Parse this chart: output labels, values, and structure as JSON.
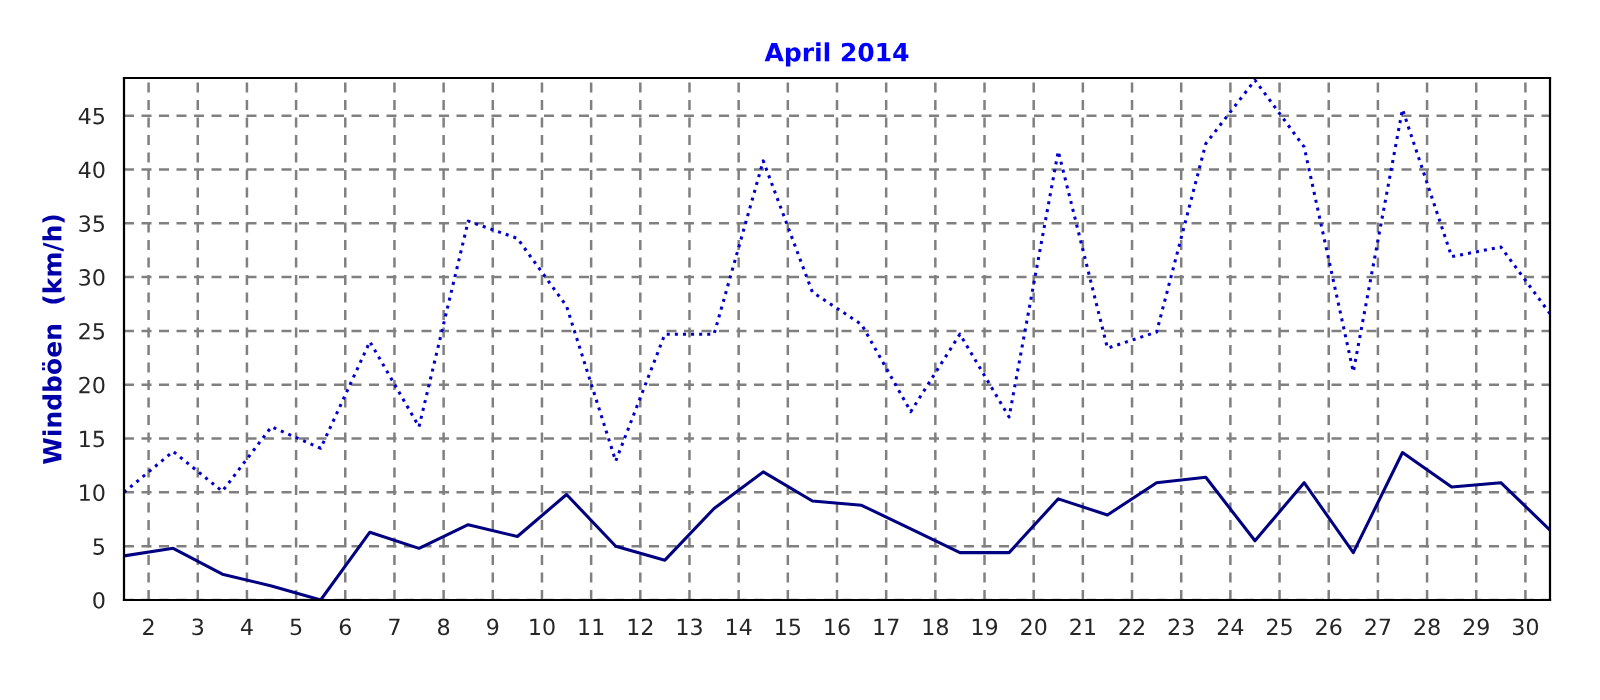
{
  "chart_data": {
    "type": "line",
    "title": "April 2014",
    "ylabel": "Windböen  (km/h)",
    "x": [
      1.5,
      2.5,
      3.5,
      4.5,
      5.5,
      6.5,
      7.5,
      8.5,
      9.5,
      10.5,
      11.5,
      12.5,
      13.5,
      14.5,
      15.5,
      16.5,
      17.5,
      18.5,
      19.5,
      20.5,
      21.5,
      22.5,
      23.5,
      24.5,
      25.5,
      26.5,
      27.5,
      28.5,
      29.5,
      30.5
    ],
    "series": [
      {
        "color": "#0000cc",
        "line_style": "dotted",
        "values": [
          10.0,
          13.8,
          10.1,
          16.1,
          14.1,
          24.0,
          16.1,
          35.2,
          33.6,
          27.3,
          12.9,
          24.7,
          24.7,
          40.8,
          28.6,
          25.6,
          17.5,
          24.7,
          17.0,
          41.7,
          23.4,
          24.9,
          42.4,
          48.3,
          42.1,
          21.2,
          45.6,
          31.9,
          32.8,
          26.6
        ]
      },
      {
        "color": "#000080",
        "line_style": "solid",
        "values": [
          4.1,
          4.8,
          2.4,
          1.3,
          0,
          6.3,
          4.8,
          7.0,
          5.9,
          9.8,
          5.0,
          3.7,
          8.5,
          11.9,
          9.2,
          8.8,
          6.6,
          4.4,
          4.4,
          9.4,
          7.9,
          10.9,
          11.4,
          5.5,
          10.9,
          4.4,
          13.7,
          10.5,
          10.9,
          6.5
        ]
      }
    ],
    "xlim": [
      1.5,
      30.5
    ],
    "xticks": [
      2,
      3,
      4,
      5,
      6,
      7,
      8,
      9,
      10,
      11,
      12,
      13,
      14,
      15,
      16,
      17,
      18,
      19,
      20,
      21,
      22,
      23,
      24,
      25,
      26,
      27,
      28,
      29,
      30
    ],
    "ylim": [
      0,
      48.5
    ],
    "yticks": [
      0,
      5,
      10,
      15,
      20,
      25,
      30,
      35,
      40,
      45
    ],
    "grid": true,
    "marker": "none"
  }
}
